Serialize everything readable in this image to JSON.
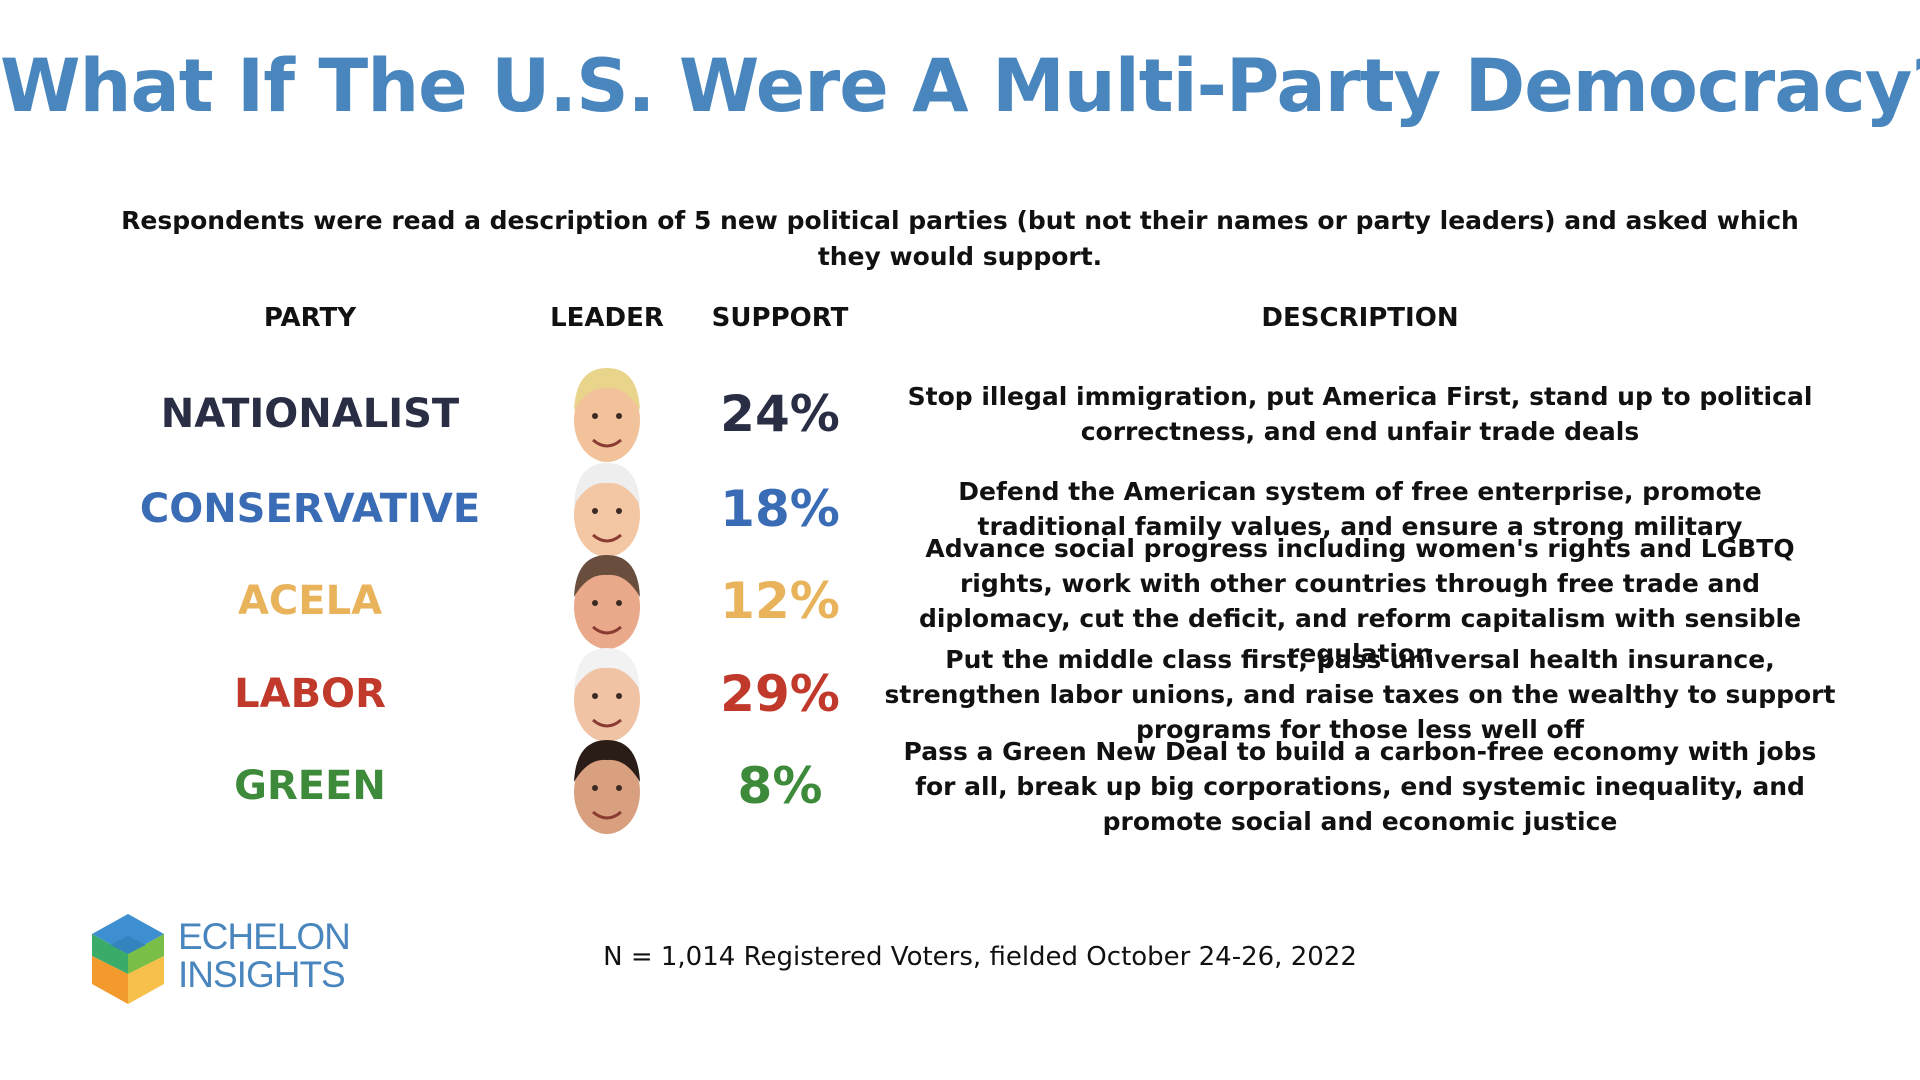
{
  "title": "What If The U.S. Were A Multi-Party Democracy?",
  "subtitle": "Respondents were read a description of 5 new political parties (but not their names or party leaders) and asked which they would support.",
  "headers": {
    "party": "PARTY",
    "leader": "LEADER",
    "support": "SUPPORT",
    "description": "DESCRIPTION"
  },
  "chart_data": {
    "type": "table",
    "title": "What If The U.S. Were A Multi-Party Democracy?",
    "columns": [
      "PARTY",
      "LEADER",
      "SUPPORT",
      "DESCRIPTION"
    ],
    "rows": [
      {
        "party": "NATIONALIST",
        "support": "24%",
        "value": 24,
        "color": "#2a2e45",
        "description": "Stop illegal immigration, put America First, stand up to political correctness, and end unfair trade deals"
      },
      {
        "party": "CONSERVATIVE",
        "support": "18%",
        "value": 18,
        "color": "#3a6bb5",
        "description": "Defend the American system of free enterprise, promote traditional family values, and ensure a strong military"
      },
      {
        "party": "ACELA",
        "support": "12%",
        "value": 12,
        "color": "#e8b35b",
        "description": "Advance social progress including women's rights and LGBTQ rights, work with other countries through free trade and diplomacy, cut the deficit, and reform capitalism with sensible regulation"
      },
      {
        "party": "LABOR",
        "support": "29%",
        "value": 29,
        "color": "#c0392b",
        "description": "Put the middle class first, pass universal health insurance, strengthen labor unions, and raise taxes on the wealthy to support programs for those less well off"
      },
      {
        "party": "GREEN",
        "support": "8%",
        "value": 8,
        "color": "#3d8a3a",
        "description": "Pass a Green New Deal to build a carbon-free economy with jobs for all, break up big corporations, end systemic inequality, and promote social and economic justice"
      }
    ]
  },
  "leader_icons": [
    "nationalist-leader-portrait-icon",
    "conservative-leader-portrait-icon",
    "acela-leader-portrait-icon",
    "labor-leader-portrait-icon",
    "green-leader-portrait-icon"
  ],
  "logo": {
    "line1": "ECHELON",
    "line2": "INSIGHTS"
  },
  "footnote": "N = 1,014 Registered Voters, fielded October 24-26, 2022",
  "colors": {
    "title": "#4a86be"
  }
}
